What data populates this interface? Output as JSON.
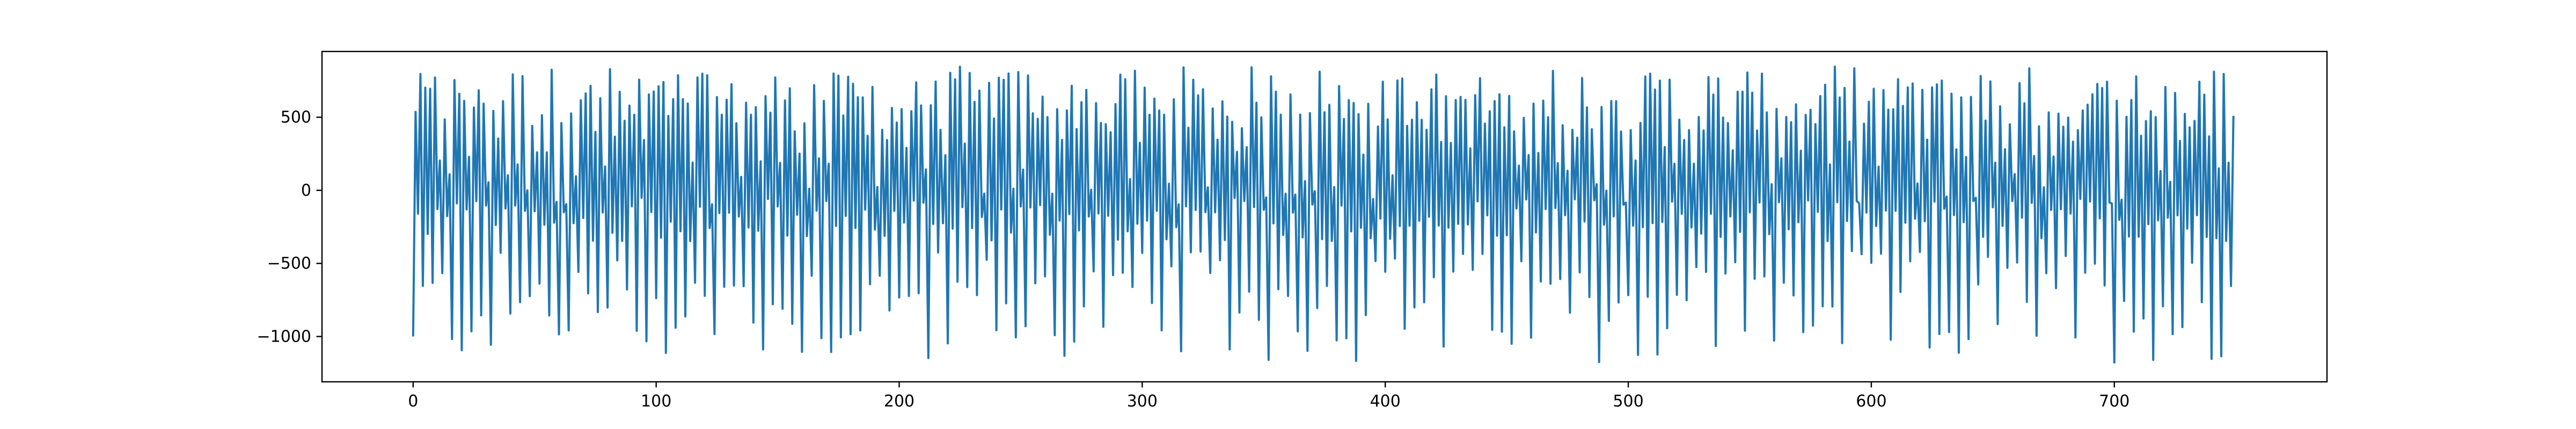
{
  "chart_data": {
    "type": "line",
    "title": "",
    "xlabel": "",
    "ylabel": "",
    "xlim": [
      -37.5,
      787.5
    ],
    "ylim": [
      -1310,
      950
    ],
    "xticks": [
      0,
      100,
      200,
      300,
      400,
      500,
      600,
      700
    ],
    "yticks": [
      -1000,
      -500,
      0,
      500
    ],
    "grid": false,
    "legend": "none",
    "n_points": 750,
    "series": [
      {
        "color": "#1f77b4",
        "x_start": 0,
        "x_step": 1,
        "period_approx": 3.4,
        "peaks_range": [
          400,
          850
        ],
        "troughs_range": [
          -1180,
          -320
        ],
        "first_value": -1000,
        "last_value": 510
      }
    ],
    "axes": {
      "color": "#000000"
    }
  }
}
